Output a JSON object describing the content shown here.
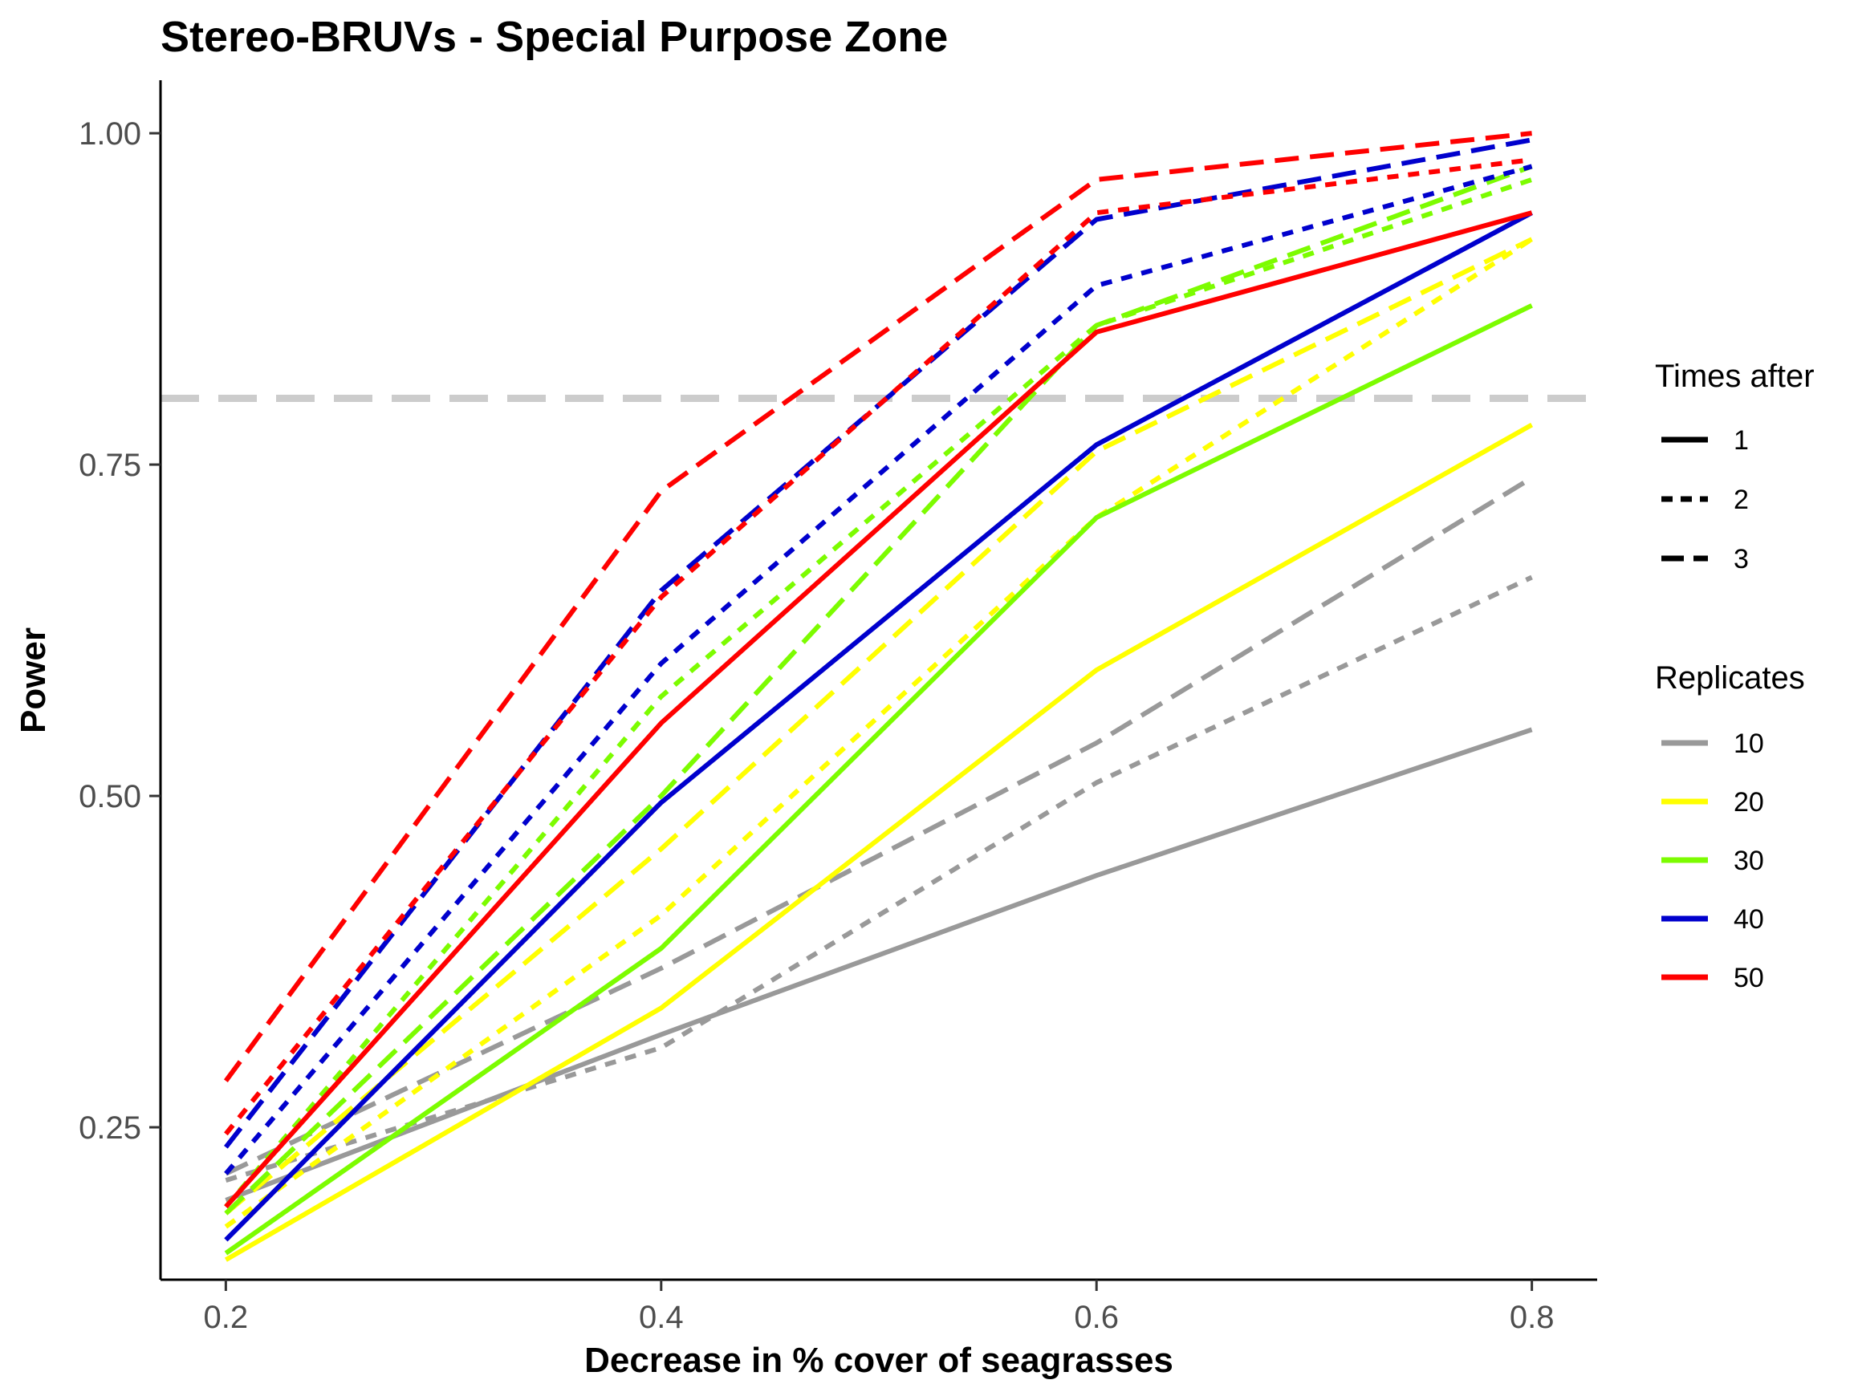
{
  "chart_data": {
    "type": "line",
    "title": "Stereo-BRUVs - Special Purpose Zone",
    "xlabel": "Decrease in % cover of seagrasses",
    "ylabel": "Power",
    "x": [
      0.2,
      0.4,
      0.6,
      0.8
    ],
    "x_tick_labels": [
      "0.2",
      "0.4",
      "0.6",
      "0.8"
    ],
    "xlim": [
      0.17,
      0.83
    ],
    "ylim": [
      0.135,
      1.04
    ],
    "y_ticks": [
      0.25,
      0.5,
      0.75,
      1.0
    ],
    "y_tick_labels": [
      "0.25",
      "0.50",
      "0.75",
      "1.00"
    ],
    "reference_line": {
      "y": 0.8,
      "color": "#cccccc",
      "style": "dashed"
    },
    "grid": false,
    "legend_placement": "right",
    "legend": {
      "times_title": "Times after",
      "times": [
        {
          "label": "1",
          "style": "solid"
        },
        {
          "label": "2",
          "style": "dotted"
        },
        {
          "label": "3",
          "style": "dashed"
        }
      ],
      "replicates_title": "Replicates",
      "replicates": [
        {
          "label": "10",
          "color": "#999999"
        },
        {
          "label": "20",
          "color": "#ffff00"
        },
        {
          "label": "30",
          "color": "#7cfc00"
        },
        {
          "label": "40",
          "color": "#0000cd"
        },
        {
          "label": "50",
          "color": "#ff0000"
        }
      ]
    },
    "series": [
      {
        "name": "10 / 1",
        "replicates": "10",
        "times": "1",
        "values": [
          0.195,
          0.32,
          0.44,
          0.55
        ]
      },
      {
        "name": "10 / 2",
        "replicates": "10",
        "times": "2",
        "values": [
          0.21,
          0.31,
          0.51,
          0.665
        ]
      },
      {
        "name": "10 / 3",
        "replicates": "10",
        "times": "3",
        "values": [
          0.215,
          0.37,
          0.54,
          0.74
        ]
      },
      {
        "name": "20 / 1",
        "replicates": "20",
        "times": "1",
        "values": [
          0.15,
          0.34,
          0.595,
          0.78
        ]
      },
      {
        "name": "20 / 2",
        "replicates": "20",
        "times": "2",
        "values": [
          0.175,
          0.41,
          0.71,
          0.92
        ]
      },
      {
        "name": "20 / 3",
        "replicates": "20",
        "times": "3",
        "values": [
          0.185,
          0.46,
          0.76,
          0.92
        ]
      },
      {
        "name": "30 / 1",
        "replicates": "30",
        "times": "1",
        "values": [
          0.155,
          0.385,
          0.71,
          0.87
        ]
      },
      {
        "name": "30 / 2",
        "replicates": "30",
        "times": "2",
        "values": [
          0.19,
          0.575,
          0.855,
          0.965
        ]
      },
      {
        "name": "30 / 3",
        "replicates": "30",
        "times": "3",
        "values": [
          0.185,
          0.5,
          0.855,
          0.975
        ]
      },
      {
        "name": "40 / 1",
        "replicates": "40",
        "times": "1",
        "values": [
          0.165,
          0.495,
          0.765,
          0.94
        ]
      },
      {
        "name": "40 / 2",
        "replicates": "40",
        "times": "2",
        "values": [
          0.215,
          0.6,
          0.885,
          0.975
        ]
      },
      {
        "name": "40 / 3",
        "replicates": "40",
        "times": "3",
        "values": [
          0.235,
          0.655,
          0.935,
          0.995
        ]
      },
      {
        "name": "50 / 1",
        "replicates": "50",
        "times": "1",
        "values": [
          0.19,
          0.555,
          0.85,
          0.94
        ]
      },
      {
        "name": "50 / 2",
        "replicates": "50",
        "times": "2",
        "values": [
          0.245,
          0.65,
          0.94,
          0.98
        ]
      },
      {
        "name": "50 / 3",
        "replicates": "50",
        "times": "3",
        "values": [
          0.285,
          0.73,
          0.965,
          1.0
        ]
      }
    ]
  }
}
